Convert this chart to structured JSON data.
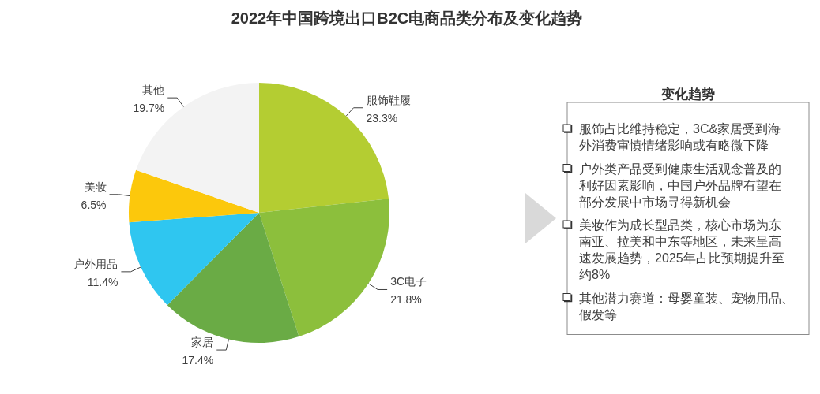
{
  "chart_data": [
    {
      "type": "pie",
      "title": "2022年中国跨境出口B2C电商品类分布及变化趋势",
      "categories": [
        "服饰鞋履",
        "3C电子",
        "家居",
        "户外用品",
        "美妆",
        "其他"
      ],
      "values": [
        23.3,
        21.8,
        17.4,
        11.4,
        6.5,
        19.7
      ],
      "value_labels": [
        "23.3%",
        "21.8%",
        "17.4%",
        "11.4%",
        "6.5%",
        "19.7%"
      ],
      "colors": [
        "#b4cd32",
        "#8cbf3c",
        "#6aab45",
        "#2fc6f0",
        "#fcc80c",
        "#f3f3f3"
      ]
    },
    {
      "type": "other",
      "title": "变化趋势",
      "annotations": [
        "服饰占比维持稳定，3C&家居受到海外消费审慎情绪影响或有略微下降",
        "户外类产品受到健康生活观念普及的利好因素影响，中国户外品牌有望在部分发展中市场寻得新机会",
        "美妆作为成长型品类，核心市场为东南亚、拉美和中东等地区，未来呈高速发展趋势，2025年占比预期提升至约8%",
        "其他潜力赛道：母婴童装、宠物用品、假发等"
      ]
    }
  ]
}
